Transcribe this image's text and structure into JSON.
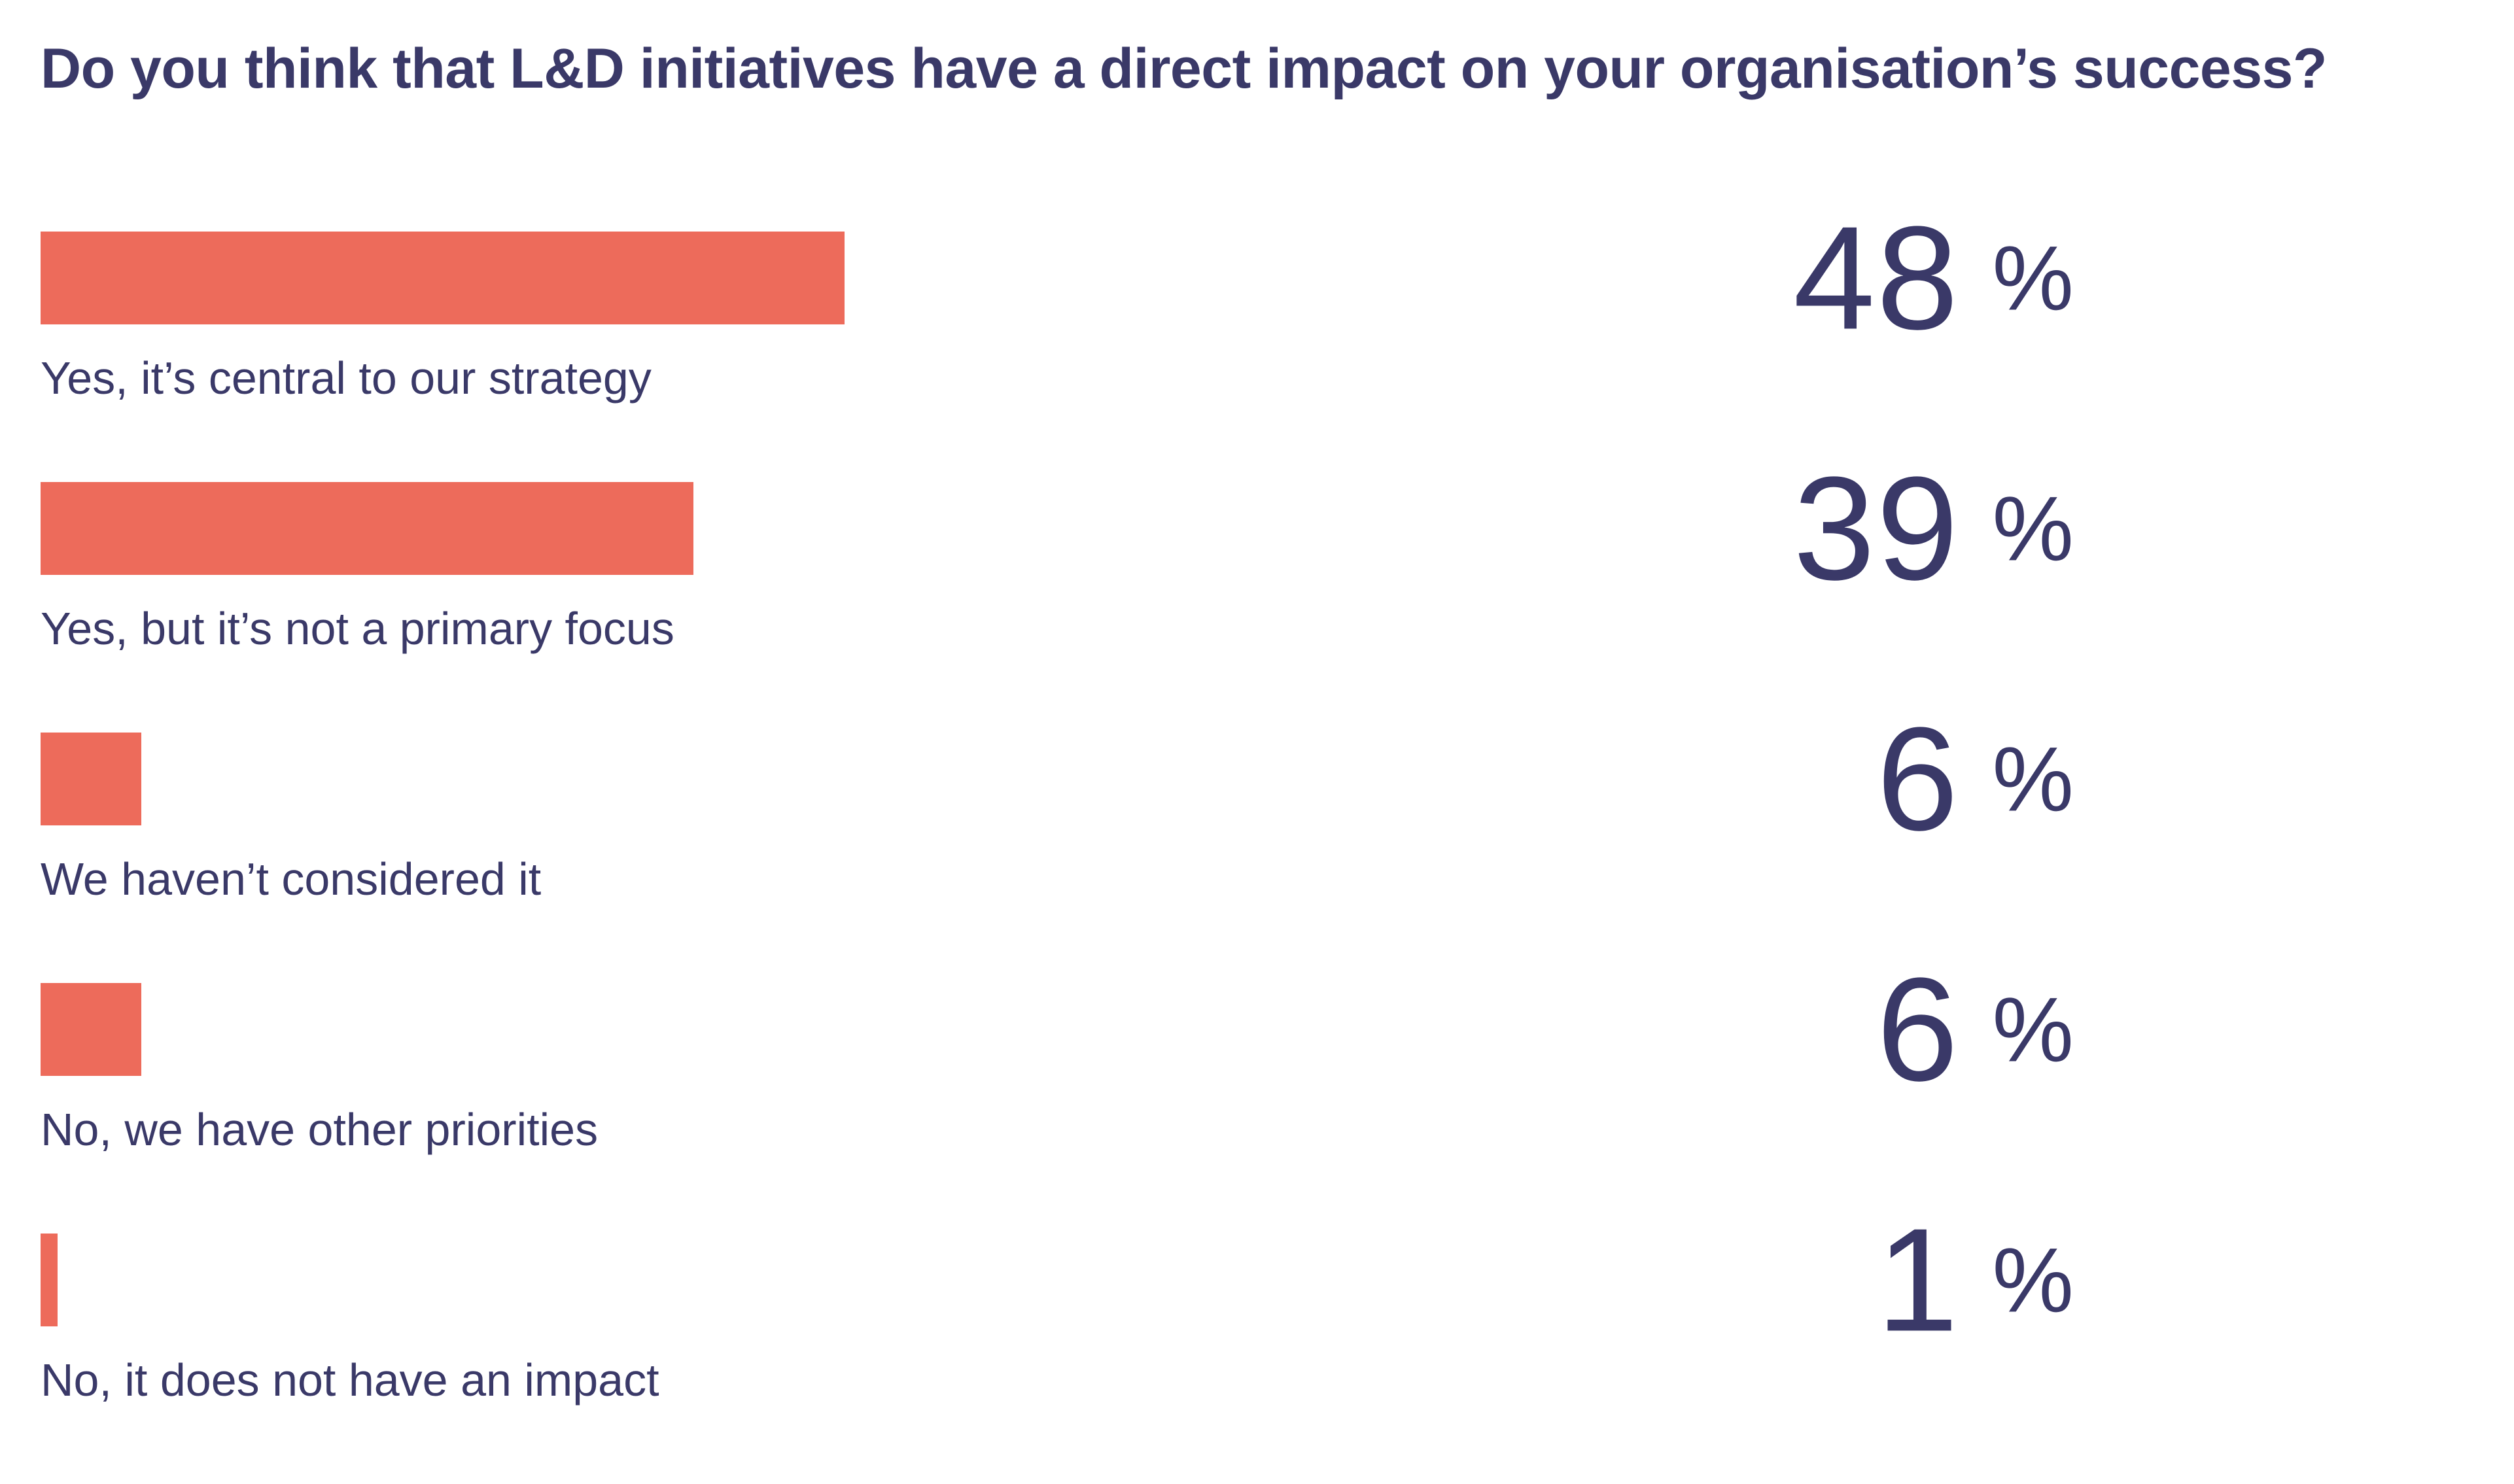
{
  "title": {
    "text": "Do you think that L&D initiatives have a direct impact on your organisation’s success?"
  },
  "colors": {
    "bar": "#ED6B5B",
    "text": "#3A3968",
    "background": "#FFFFFF"
  },
  "chart_data": {
    "type": "bar",
    "orientation": "horizontal",
    "title": "Do you think that L&D initiatives have a direct impact on your organisation’s success?",
    "categories": [
      "Yes, it’s central to our strategy",
      "Yes, but it’s not a primary focus",
      "We haven’t considered it",
      "No, we have other priorities",
      "No, it does not have an impact"
    ],
    "values": [
      48,
      39,
      6,
      6,
      1
    ],
    "unit": "%",
    "value_labels": [
      "48 %",
      "39 %",
      "6 %",
      "6 %",
      "1%"
    ],
    "value_labels_position": "right",
    "xlim": [
      0,
      100
    ],
    "grid": false,
    "legend": false,
    "bar_color": "#ED6B5B",
    "label_color": "#3A3968",
    "value_color": "#3A3968"
  }
}
